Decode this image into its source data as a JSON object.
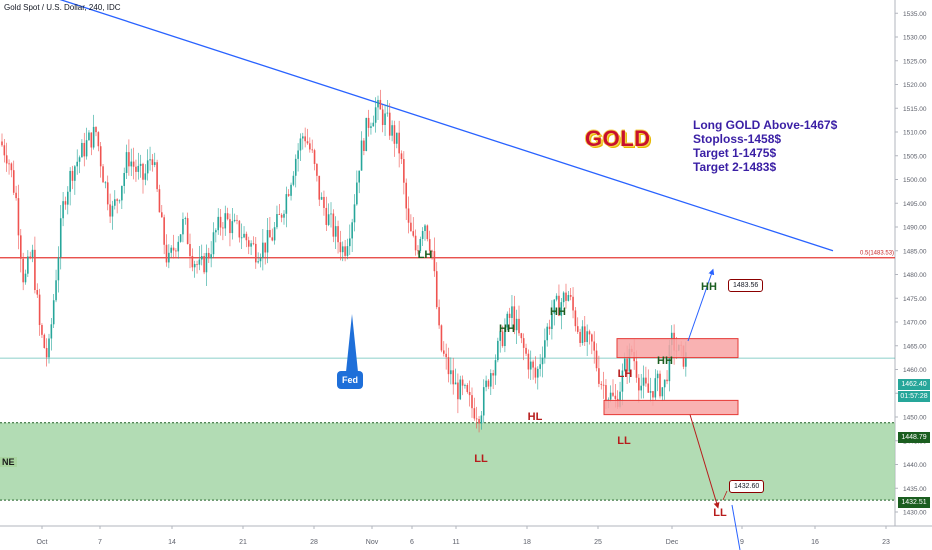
{
  "header": {
    "title": "Gold Spot / U.S. Dollar, 240, IDC"
  },
  "annotations": {
    "gold_label": "GOLD",
    "trade_plan": [
      "Long GOLD Above-1467$",
      "Stoploss-1458$",
      "Target 1-1475$",
      "Target 2-1483$"
    ],
    "fed_label": "Fed",
    "zone_label": "NE",
    "target_box_high": "1483.56",
    "target_box_low": "1432.60",
    "fib_label": "0.5(1483.53)"
  },
  "price_tags": {
    "current_price": "1462.40",
    "countdown": "01:57:28",
    "zone_top": "1448.79",
    "zone_bottom": "1432.51"
  },
  "colors": {
    "trendline": "#2962ff",
    "resistance": "#e53935",
    "up_candle": "#26a69a",
    "down_candle": "#ef5350",
    "zone_fill": "#a5d6a7",
    "hh_text": "#1b5e20",
    "ll_text": "#b71c1c",
    "current_price_bg": "#26a69a",
    "zone_tag_bg": "#1b5e20"
  },
  "chart_data": {
    "type": "candlestick",
    "title": "Gold Spot / U.S. Dollar, 240, IDC",
    "y_axis": {
      "ylim": [
        1428,
        1562
      ],
      "ticks": [
        "1430.00",
        "1435.00",
        "1440.00",
        "1445.00",
        "1450.00",
        "1455.00",
        "1460.00",
        "1465.00",
        "1470.00",
        "1475.00",
        "1480.00",
        "1485.00",
        "1490.00",
        "1495.00",
        "1500.00",
        "1505.00",
        "1510.00",
        "1515.00",
        "1520.00",
        "1525.00",
        "1530.00",
        "1535.00",
        "1540.00",
        "1545.00",
        "1550.00",
        "1555.00",
        "1560.00"
      ]
    },
    "x_axis": {
      "ticks": [
        "Oct",
        "7",
        "14",
        "21",
        "28",
        "Nov",
        "6",
        "11",
        "18",
        "25",
        "Dec",
        "9",
        "16",
        "23"
      ]
    },
    "candle_path": [
      [
        0,
        1508
      ],
      [
        8,
        1505
      ],
      [
        16,
        1496
      ],
      [
        24,
        1478
      ],
      [
        32,
        1485
      ],
      [
        40,
        1468
      ],
      [
        48,
        1462
      ],
      [
        56,
        1480
      ],
      [
        64,
        1496
      ],
      [
        72,
        1502
      ],
      [
        80,
        1505
      ],
      [
        88,
        1508
      ],
      [
        96,
        1510
      ],
      [
        104,
        1500
      ],
      [
        112,
        1493
      ],
      [
        120,
        1498
      ],
      [
        128,
        1505
      ],
      [
        136,
        1502
      ],
      [
        144,
        1500
      ],
      [
        152,
        1506
      ],
      [
        160,
        1492
      ],
      [
        168,
        1482
      ],
      [
        176,
        1487
      ],
      [
        184,
        1491
      ],
      [
        192,
        1484
      ],
      [
        200,
        1481
      ],
      [
        208,
        1484
      ],
      [
        216,
        1489
      ],
      [
        224,
        1492
      ],
      [
        232,
        1490
      ],
      [
        240,
        1489
      ],
      [
        248,
        1487
      ],
      [
        256,
        1485
      ],
      [
        264,
        1486
      ],
      [
        272,
        1488
      ],
      [
        280,
        1492
      ],
      [
        288,
        1498
      ],
      [
        296,
        1505
      ],
      [
        304,
        1510
      ],
      [
        312,
        1505
      ],
      [
        320,
        1496
      ],
      [
        328,
        1492
      ],
      [
        336,
        1488
      ],
      [
        344,
        1485
      ],
      [
        352,
        1492
      ],
      [
        360,
        1505
      ],
      [
        368,
        1512
      ],
      [
        376,
        1515
      ],
      [
        384,
        1513
      ],
      [
        392,
        1510
      ],
      [
        400,
        1506
      ],
      [
        408,
        1490
      ],
      [
        416,
        1485
      ],
      [
        424,
        1492
      ],
      [
        432,
        1485
      ],
      [
        440,
        1465
      ],
      [
        448,
        1460
      ],
      [
        456,
        1456
      ],
      [
        464,
        1455
      ],
      [
        472,
        1452
      ],
      [
        480,
        1451
      ],
      [
        488,
        1458
      ],
      [
        496,
        1463
      ],
      [
        504,
        1468
      ],
      [
        512,
        1472
      ],
      [
        520,
        1466
      ],
      [
        528,
        1462
      ],
      [
        536,
        1458
      ],
      [
        544,
        1466
      ],
      [
        552,
        1472
      ],
      [
        560,
        1474
      ],
      [
        568,
        1476
      ],
      [
        576,
        1470
      ],
      [
        584,
        1466
      ],
      [
        592,
        1465
      ],
      [
        600,
        1458
      ],
      [
        608,
        1455
      ],
      [
        616,
        1453
      ],
      [
        624,
        1460
      ],
      [
        632,
        1464
      ],
      [
        640,
        1457
      ],
      [
        648,
        1455
      ],
      [
        656,
        1457
      ],
      [
        664,
        1456
      ],
      [
        672,
        1466
      ],
      [
        680,
        1463
      ],
      [
        688,
        1462
      ]
    ],
    "horizontal_levels": [
      {
        "name": "resistance",
        "price": 1483.53
      },
      {
        "name": "current",
        "price": 1462.4
      }
    ],
    "trendline": {
      "from_price": 1542,
      "to_price": 1485
    },
    "zones": [
      {
        "name": "demand-zone",
        "from": 1432.51,
        "to": 1448.79
      },
      {
        "name": "upper-box",
        "from": 1462.5,
        "to": 1466.5
      },
      {
        "name": "lower-box",
        "from": 1450.5,
        "to": 1453.5
      }
    ],
    "structure_labels": [
      {
        "text": "LH",
        "price": 1496,
        "kind": "high"
      },
      {
        "text": "HH",
        "price": 1479,
        "kind": "high"
      },
      {
        "text": "HH",
        "price": 1482,
        "kind": "high"
      },
      {
        "text": "HL",
        "price": 1454,
        "kind": "low"
      },
      {
        "text": "LL",
        "price": 1445,
        "kind": "low"
      },
      {
        "text": "LH",
        "price": 1465,
        "kind": "low"
      },
      {
        "text": "LL",
        "price": 1450,
        "kind": "low"
      },
      {
        "text": "HH",
        "price": 1469,
        "kind": "high"
      },
      {
        "text": "HH",
        "price": 1487,
        "kind": "high"
      },
      {
        "text": "LL",
        "price": 1431,
        "kind": "low"
      }
    ],
    "projections": [
      {
        "name": "up-target",
        "from": 1466,
        "to": 1483.56
      },
      {
        "name": "down-target",
        "from": 1450.5,
        "to": 1432.6
      }
    ]
  }
}
